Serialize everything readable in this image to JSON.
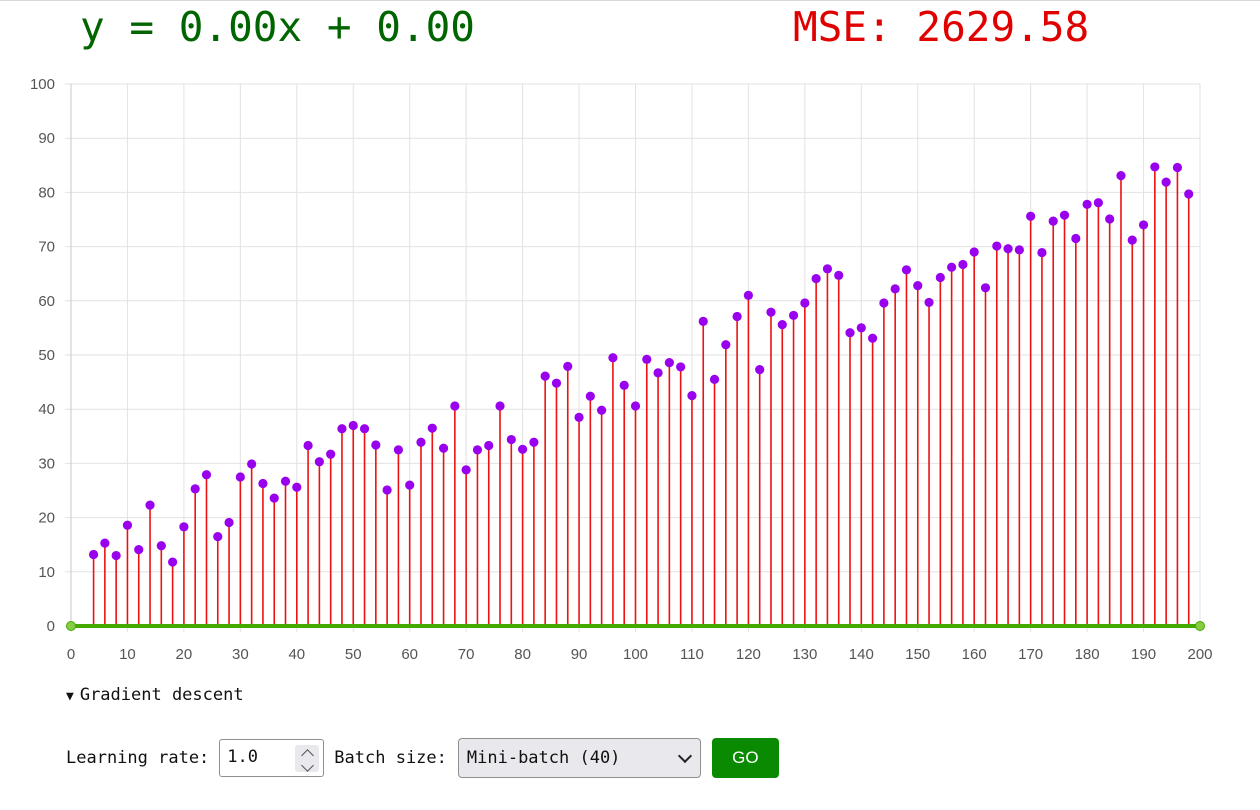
{
  "header": {
    "equation": "y = 0.00x + 0.00",
    "mse": "MSE: 2629.58"
  },
  "colors": {
    "equation": "#006400",
    "mse": "#e00000",
    "points": "#9900ee",
    "residuals": "#ee1111",
    "fit_line": "#44aa00",
    "go_button": "#0a8a00"
  },
  "section": {
    "toggle_icon": "triangle-down-icon",
    "title": "Gradient descent"
  },
  "controls": {
    "learning_rate_label": "Learning rate:",
    "learning_rate_value": "1.0",
    "batch_size_label": "Batch size:",
    "batch_size_value": "Mini-batch (40)",
    "go_label": "GO"
  },
  "chart_data": {
    "type": "scatter",
    "xlim": [
      0,
      200
    ],
    "ylim": [
      0,
      100
    ],
    "x_ticks": [
      "0",
      "10",
      "20",
      "30",
      "40",
      "50",
      "60",
      "70",
      "80",
      "90",
      "100",
      "110",
      "120",
      "130",
      "140",
      "150",
      "160",
      "170",
      "180",
      "190",
      "200"
    ],
    "y_ticks": [
      "0",
      "10",
      "20",
      "30",
      "40",
      "50",
      "60",
      "70",
      "80",
      "90",
      "100"
    ],
    "grid": true,
    "fit_line": {
      "slope": 0,
      "intercept": 0
    },
    "points": [
      [
        4,
        13.2
      ],
      [
        6,
        15.3
      ],
      [
        8,
        13.0
      ],
      [
        10,
        18.6
      ],
      [
        12,
        14.1
      ],
      [
        14,
        22.3
      ],
      [
        16,
        14.8
      ],
      [
        18,
        11.8
      ],
      [
        20,
        18.3
      ],
      [
        22,
        25.3
      ],
      [
        24,
        27.9
      ],
      [
        26,
        16.5
      ],
      [
        28,
        19.1
      ],
      [
        30,
        27.5
      ],
      [
        32,
        29.9
      ],
      [
        34,
        26.3
      ],
      [
        36,
        23.6
      ],
      [
        38,
        26.7
      ],
      [
        40,
        25.6
      ],
      [
        42,
        33.3
      ],
      [
        44,
        30.3
      ],
      [
        46,
        31.7
      ],
      [
        48,
        36.4
      ],
      [
        50,
        37.0
      ],
      [
        52,
        36.4
      ],
      [
        54,
        33.4
      ],
      [
        56,
        25.1
      ],
      [
        58,
        32.5
      ],
      [
        60,
        26.0
      ],
      [
        62,
        33.9
      ],
      [
        64,
        36.5
      ],
      [
        66,
        32.8
      ],
      [
        68,
        40.6
      ],
      [
        70,
        28.8
      ],
      [
        72,
        32.5
      ],
      [
        74,
        33.3
      ],
      [
        76,
        40.6
      ],
      [
        78,
        34.4
      ],
      [
        80,
        32.6
      ],
      [
        82,
        33.9
      ],
      [
        84,
        46.1
      ],
      [
        86,
        44.8
      ],
      [
        88,
        47.9
      ],
      [
        90,
        38.5
      ],
      [
        92,
        42.4
      ],
      [
        94,
        39.8
      ],
      [
        96,
        49.5
      ],
      [
        98,
        44.4
      ],
      [
        100,
        40.6
      ],
      [
        102,
        49.2
      ],
      [
        104,
        46.7
      ],
      [
        106,
        48.6
      ],
      [
        108,
        47.8
      ],
      [
        110,
        42.5
      ],
      [
        112,
        56.2
      ],
      [
        114,
        45.5
      ],
      [
        116,
        51.9
      ],
      [
        118,
        57.1
      ],
      [
        120,
        61.0
      ],
      [
        122,
        47.3
      ],
      [
        124,
        57.9
      ],
      [
        126,
        55.6
      ],
      [
        128,
        57.3
      ],
      [
        130,
        59.6
      ],
      [
        132,
        64.1
      ],
      [
        134,
        65.9
      ],
      [
        136,
        64.7
      ],
      [
        138,
        54.1
      ],
      [
        140,
        55.0
      ],
      [
        142,
        53.1
      ],
      [
        144,
        59.6
      ],
      [
        146,
        62.2
      ],
      [
        148,
        65.7
      ],
      [
        150,
        62.8
      ],
      [
        152,
        59.7
      ],
      [
        154,
        64.3
      ],
      [
        156,
        66.2
      ],
      [
        158,
        66.7
      ],
      [
        160,
        69.0
      ],
      [
        162,
        62.4
      ],
      [
        164,
        70.1
      ],
      [
        166,
        69.6
      ],
      [
        168,
        69.4
      ],
      [
        170,
        75.6
      ],
      [
        172,
        68.9
      ],
      [
        174,
        74.7
      ],
      [
        176,
        75.8
      ],
      [
        178,
        71.5
      ],
      [
        180,
        77.8
      ],
      [
        182,
        78.1
      ],
      [
        184,
        75.1
      ],
      [
        186,
        83.1
      ],
      [
        188,
        71.2
      ],
      [
        190,
        74.0
      ],
      [
        192,
        84.7
      ],
      [
        194,
        81.9
      ],
      [
        196,
        84.6
      ],
      [
        198,
        79.7
      ]
    ]
  }
}
